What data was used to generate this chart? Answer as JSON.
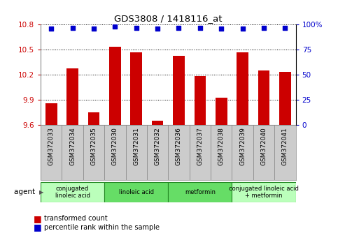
{
  "title": "GDS3808 / 1418116_at",
  "samples": [
    "GSM372033",
    "GSM372034",
    "GSM372035",
    "GSM372030",
    "GSM372031",
    "GSM372032",
    "GSM372036",
    "GSM372037",
    "GSM372038",
    "GSM372039",
    "GSM372040",
    "GSM372041"
  ],
  "bar_values": [
    9.86,
    10.28,
    9.75,
    10.54,
    10.47,
    9.65,
    10.43,
    10.19,
    9.93,
    10.47,
    10.25,
    10.24
  ],
  "percentile_values": [
    96,
    97,
    96,
    98,
    97,
    96,
    97,
    97,
    96,
    96,
    97,
    97
  ],
  "ymin": 9.6,
  "ymax": 10.8,
  "yticks": [
    9.6,
    9.9,
    10.2,
    10.5,
    10.8
  ],
  "right_yticks": [
    0,
    25,
    50,
    75,
    100
  ],
  "right_yticklabels": [
    "0",
    "25",
    "50",
    "75",
    "100%"
  ],
  "bar_color": "#cc0000",
  "dot_color": "#0000cc",
  "agent_groups": [
    {
      "label": "conjugated\nlinoleic acid",
      "start": 0,
      "end": 3,
      "color": "#bbffbb"
    },
    {
      "label": "linoleic acid",
      "start": 3,
      "end": 6,
      "color": "#66dd66"
    },
    {
      "label": "metformin",
      "start": 6,
      "end": 9,
      "color": "#66dd66"
    },
    {
      "label": "conjugated linoleic acid\n+ metformin",
      "start": 9,
      "end": 12,
      "color": "#bbffbb"
    }
  ],
  "legend_bar_label": "transformed count",
  "legend_dot_label": "percentile rank within the sample",
  "agent_label": "agent",
  "sample_bg_color": "#cccccc",
  "agent_border_color": "#228822"
}
